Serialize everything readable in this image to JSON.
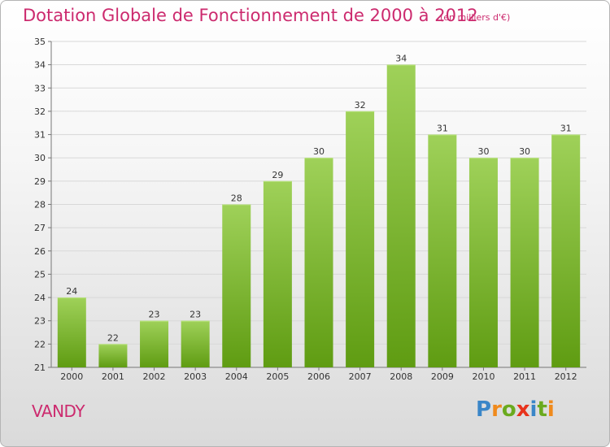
{
  "header": {
    "title": "Dotation Globale de Fonctionnement de 2000 à 2012",
    "subtitle": "(en milliers d'€)"
  },
  "footer": {
    "commune": "VANDY",
    "logo_text": "Proxiti"
  },
  "colors": {
    "title": "#cc2a6e",
    "bar_top": "#9fd159",
    "bar_bottom": "#5f9c12",
    "logo_letters": [
      "#3a86c8",
      "#f08a1c",
      "#6aaa1e",
      "#e8331c",
      "#3a86c8",
      "#6aaa1e",
      "#f08a1c"
    ]
  },
  "chart_data": {
    "type": "bar",
    "categories": [
      "2000",
      "2001",
      "2002",
      "2003",
      "2004",
      "2005",
      "2006",
      "2007",
      "2008",
      "2009",
      "2010",
      "2011",
      "2012"
    ],
    "values": [
      24,
      22,
      23,
      23,
      28,
      29,
      30,
      32,
      34,
      31,
      30,
      30,
      31
    ],
    "title": "Dotation Globale de Fonctionnement de 2000 à 2012",
    "subtitle": "(en milliers d'€)",
    "xlabel": "",
    "ylabel": "",
    "ylim": [
      21,
      35
    ],
    "yticks": [
      21,
      22,
      23,
      24,
      25,
      26,
      27,
      28,
      29,
      30,
      31,
      32,
      33,
      34,
      35
    ],
    "grid": true,
    "legend": "none"
  }
}
